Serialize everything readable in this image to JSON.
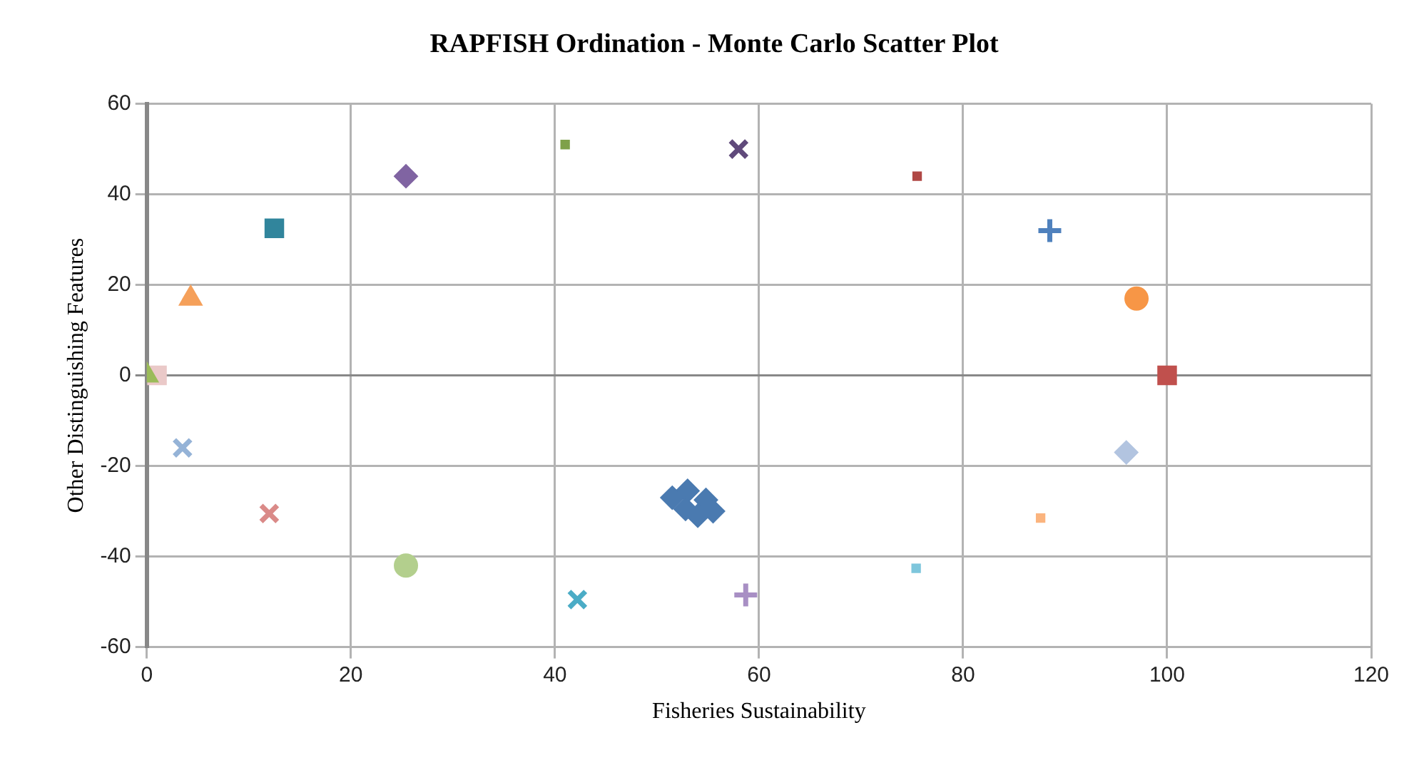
{
  "chart_data": {
    "type": "scatter",
    "title": "RAPFISH Ordination - Monte Carlo Scatter Plot",
    "xlabel": "Fisheries Sustainability",
    "ylabel": "Other Distinguishing Features",
    "xlim": [
      0,
      120
    ],
    "xticks": [
      0,
      20,
      40,
      60,
      80,
      100,
      120
    ],
    "ylim": [
      -60,
      60
    ],
    "yticks": [
      -60,
      -40,
      -20,
      0,
      20,
      40,
      60
    ],
    "grid": true,
    "legend": false,
    "series": [
      {
        "color": "#4a7ab0",
        "marker": "diamond",
        "x": [
          51.5,
          53,
          52.8,
          54.8,
          55.5,
          54
        ],
        "values": [
          -27,
          -25.5,
          -29.5,
          -27.5,
          -30,
          -31
        ]
      },
      {
        "color": "#4f81bd",
        "marker": "cross",
        "x": [
          88.5
        ],
        "values": [
          32
        ]
      },
      {
        "color": "#c0504d",
        "marker": "square",
        "x": [
          100
        ],
        "values": [
          0
        ]
      },
      {
        "color": "#9bbb59",
        "marker": "triangle",
        "x": [
          0
        ],
        "values": [
          0
        ]
      },
      {
        "color": "#604a7b",
        "marker": "x",
        "x": [
          58
        ],
        "values": [
          50
        ]
      },
      {
        "color": "#4bacc6",
        "marker": "x",
        "x": [
          42.2
        ],
        "values": [
          -49.5
        ]
      },
      {
        "color": "#f79646",
        "marker": "circle",
        "x": [
          97
        ],
        "values": [
          17
        ]
      },
      {
        "color": "#8064a2",
        "marker": "diamond",
        "x": [
          25.4
        ],
        "values": [
          44
        ]
      },
      {
        "color": "#31859c",
        "marker": "square",
        "x": [
          12.5
        ],
        "values": [
          32.5
        ]
      },
      {
        "color": "#f5a05a",
        "marker": "triangle",
        "x": [
          4.3
        ],
        "values": [
          17
        ]
      },
      {
        "color": "#95b3d7",
        "marker": "x",
        "x": [
          3.5
        ],
        "values": [
          -16
        ]
      },
      {
        "color": "#da8a88",
        "marker": "x",
        "x": [
          12
        ],
        "values": [
          -30.5
        ]
      },
      {
        "color": "#b3cf8d",
        "marker": "circle",
        "x": [
          25.4
        ],
        "values": [
          -42
        ]
      },
      {
        "color": "#b2c4e0",
        "marker": "diamond",
        "x": [
          96
        ],
        "values": [
          -17
        ]
      },
      {
        "color": "#b04845",
        "x": [
          75.5
        ],
        "values": [
          44
        ]
      },
      {
        "color": "#7fa14a",
        "x": [
          41
        ],
        "values": [
          51
        ]
      },
      {
        "color": "#a88fc4",
        "marker": "cross",
        "x": [
          58.7
        ],
        "values": [
          -48.5
        ]
      },
      {
        "color": "#7ec6dc",
        "x": [
          75.4
        ],
        "values": [
          -42.6
        ]
      },
      {
        "color": "#fbb47e",
        "x": [
          87.6
        ],
        "values": [
          -31.5
        ]
      },
      {
        "color": "#eac9c8",
        "marker": "square",
        "x": [
          1
        ],
        "values": [
          0
        ]
      }
    ]
  }
}
